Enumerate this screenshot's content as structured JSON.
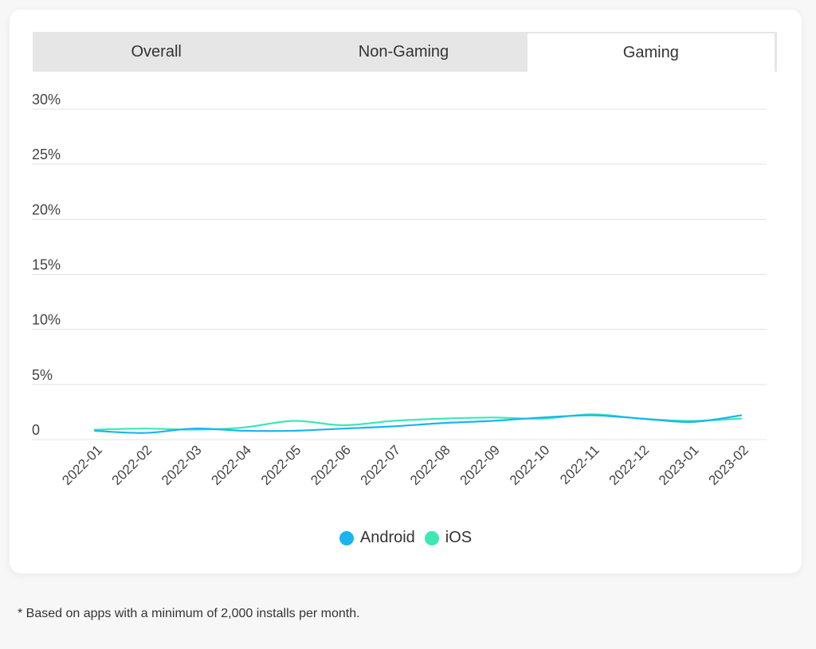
{
  "tabs": [
    {
      "label": "Overall",
      "active": false
    },
    {
      "label": "Non-Gaming",
      "active": false
    },
    {
      "label": "Gaming",
      "active": true
    }
  ],
  "chart_data": {
    "type": "line",
    "x": [
      "2022-01",
      "2022-02",
      "2022-03",
      "2022-04",
      "2022-05",
      "2022-06",
      "2022-07",
      "2022-08",
      "2022-09",
      "2022-10",
      "2022-11",
      "2022-12",
      "2023-01",
      "2023-02"
    ],
    "y_ticks": [
      "0",
      "5%",
      "10%",
      "15%",
      "20%",
      "25%",
      "30%"
    ],
    "ylim": [
      0,
      30
    ],
    "grid": true,
    "legend_position": "bottom-center",
    "series": [
      {
        "name": "Android",
        "color": "#1ab4f0",
        "values": [
          0.8,
          0.6,
          1.0,
          0.8,
          0.8,
          1.0,
          1.2,
          1.5,
          1.7,
          2.0,
          2.2,
          1.9,
          1.6,
          2.2
        ]
      },
      {
        "name": "iOS",
        "color": "#3de8b4",
        "values": [
          0.9,
          1.0,
          0.9,
          1.1,
          1.7,
          1.3,
          1.7,
          1.9,
          2.0,
          1.9,
          2.3,
          1.9,
          1.7,
          1.9
        ]
      }
    ]
  },
  "footnote": "* Based on apps with a minimum of 2,000 installs per month."
}
